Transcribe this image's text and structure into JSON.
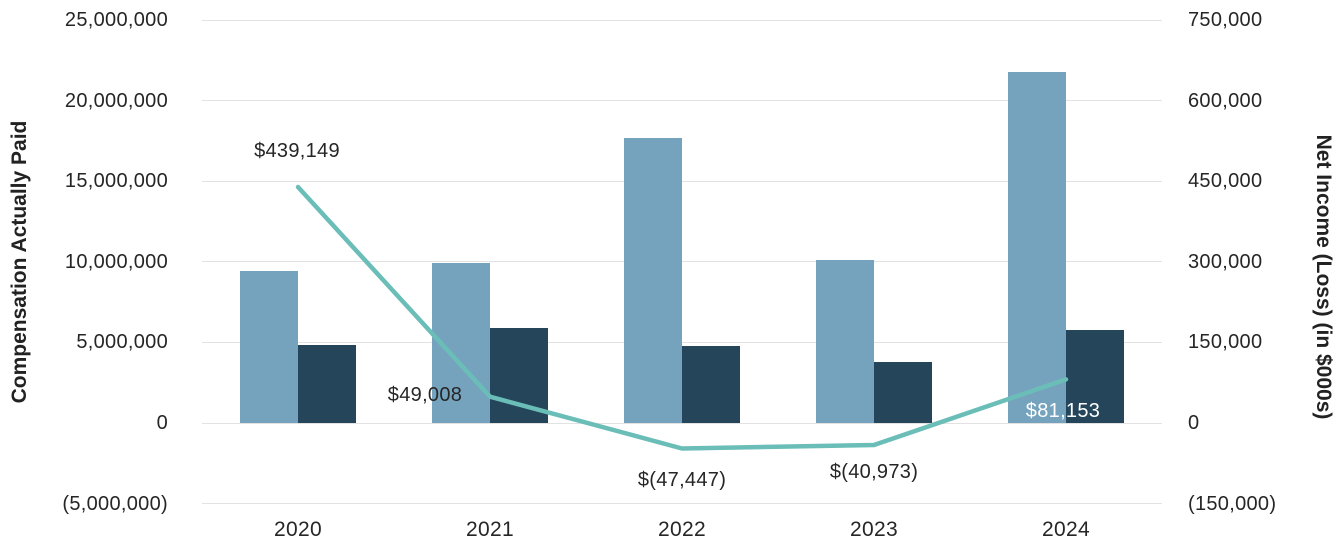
{
  "chart_data": {
    "type": "bar",
    "subtype": "grouped-bars-with-line-dual-axis",
    "categories": [
      "2020",
      "2021",
      "2022",
      "2023",
      "2024"
    ],
    "series": [
      {
        "name": "compensation-bar-1",
        "type": "bar",
        "axis": "left",
        "color": "#75A3BE",
        "values": [
          9400000,
          9900000,
          17700000,
          10100000,
          21800000
        ]
      },
      {
        "name": "compensation-bar-2",
        "type": "bar",
        "axis": "left",
        "color": "#24455A",
        "values": [
          4850000,
          5900000,
          4750000,
          3800000,
          5800000
        ]
      },
      {
        "name": "net-income-line",
        "type": "line",
        "axis": "right",
        "color": "#6BBEB8",
        "values": [
          439149,
          49008,
          -47447,
          -40973,
          81153
        ],
        "point_labels": [
          {
            "text": "$439,149",
            "dx": -1,
            "dy": -36,
            "color": "#262626"
          },
          {
            "text": "$49,008",
            "dx": -65,
            "dy": -2,
            "color": "#262626"
          },
          {
            "text": "$(47,447)",
            "dx": 0,
            "dy": 32,
            "color": "#262626"
          },
          {
            "text": "$(40,973)",
            "dx": 0,
            "dy": 27,
            "color": "#262626"
          },
          {
            "text": "$81,153",
            "dx": -3,
            "dy": 32,
            "color": "#FFFFFF"
          }
        ]
      }
    ],
    "left_axis": {
      "title": "Compensation Actually Paid",
      "min": -5000000,
      "max": 25000000,
      "step": 5000000,
      "tick_labels": [
        "25,000,000",
        "20,000,000",
        "15,000,000",
        "10,000,000",
        "5,000,000",
        "0",
        "(5,000,000)"
      ]
    },
    "right_axis": {
      "title": "Net Income (Loss) (in $000s)",
      "min": -150000,
      "max": 750000,
      "step": 150000,
      "tick_labels": [
        "750,000",
        "600,000",
        "450,000",
        "300,000",
        "150,000",
        "0",
        "(150,000)"
      ]
    },
    "grid": true,
    "legend": "none",
    "title": "",
    "colors": {
      "gridline": "#E2E2E2",
      "text": "#262626",
      "background": "#FFFFFF"
    }
  }
}
